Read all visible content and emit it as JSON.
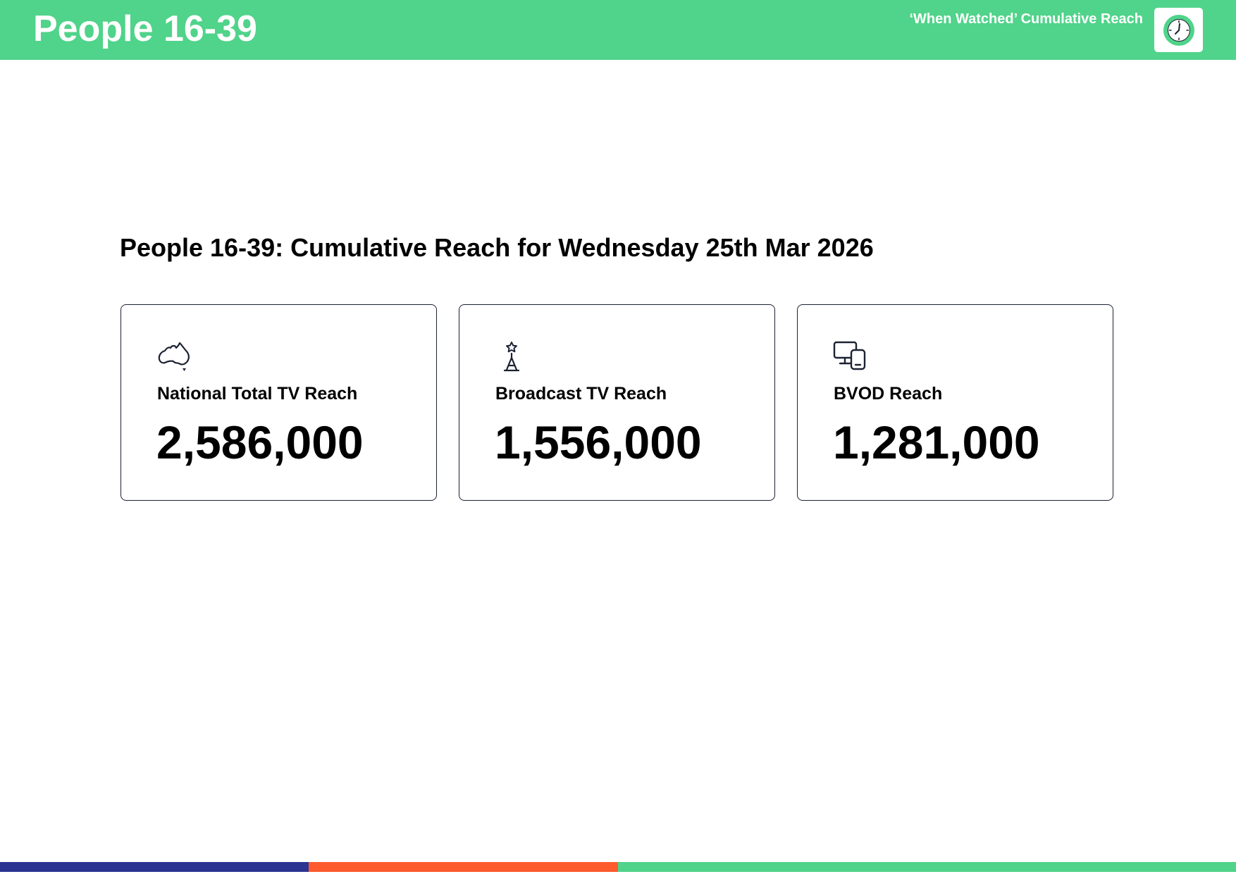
{
  "header": {
    "title": "People 16-39",
    "subtitle": "‘When Watched’ Cumulative Reach",
    "logo_icon": "clock-icon"
  },
  "main": {
    "title": "People 16-39: Cumulative Reach for Wednesday 25th Mar 2026",
    "cards": [
      {
        "icon": "australia-map-icon",
        "label": "National Total TV Reach",
        "value": "2,586,000"
      },
      {
        "icon": "broadcast-tower-icon",
        "label": "Broadcast TV Reach",
        "value": "1,556,000"
      },
      {
        "icon": "devices-icon",
        "label": "BVOD Reach",
        "value": "1,281,000"
      }
    ]
  },
  "colors": {
    "brand_green": "#50d38a",
    "navy": "#2b3490",
    "orange": "#fd5a2e",
    "card_border": "#1c2233",
    "icon_stroke": "#1c2233"
  }
}
